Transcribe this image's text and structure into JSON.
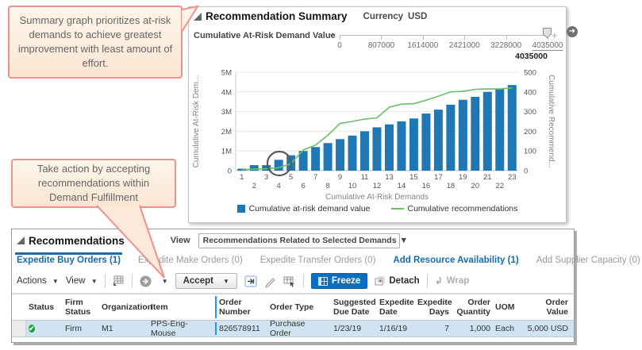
{
  "callouts": {
    "summary": "Summary graph prioritizes at-risk demands to achieve greatest improvement with least amount of effort.",
    "action": "Take action by accepting recommendations within Demand Fulfillment"
  },
  "summary_panel": {
    "title": "Recommendation Summary",
    "currency_label": "Currency",
    "currency_value": "USD",
    "slider": {
      "label": "Cumulative At-Risk Demand Value",
      "minus_label": "−",
      "plus_label": "+",
      "ticks": [
        "0",
        "807000",
        "1614000",
        "2421000",
        "3228000",
        "4035000"
      ],
      "current_value": "4035000"
    }
  },
  "chart_data": {
    "type": "bar",
    "title": "",
    "categories": [
      "1",
      "2",
      "3",
      "4",
      "5",
      "6",
      "7",
      "8",
      "9",
      "10",
      "11",
      "12",
      "13",
      "14",
      "15",
      "16",
      "17",
      "18",
      "19",
      "20",
      "21",
      "22",
      "23"
    ],
    "series": [
      {
        "name": "Cumulative at-risk demand value",
        "type": "bar",
        "axis": "left",
        "color": "#1f77b4",
        "values": [
          100000,
          280000,
          280000,
          550000,
          780000,
          1000000,
          1200000,
          1400000,
          1600000,
          1780000,
          2000000,
          2200000,
          2350000,
          2500000,
          2650000,
          2900000,
          3100000,
          3350000,
          3600000,
          3750000,
          4000000,
          4150000,
          4350000
        ]
      },
      {
        "name": "Cumulative recommendations",
        "type": "line",
        "axis": "right",
        "color": "#6abf69",
        "values": [
          5,
          8,
          10,
          15,
          35,
          105,
          130,
          180,
          240,
          250,
          262,
          268,
          322,
          338,
          340,
          358,
          378,
          400,
          403,
          413,
          415,
          415,
          420
        ]
      }
    ],
    "xlabel": "Cumulative At-Risk Demands",
    "ylabel_left": "Cumulative At-Risk Dem...",
    "ylabel_right": "Cumulative Recommend...",
    "ylim_left": [
      0,
      5000000
    ],
    "ylim_right": [
      0,
      500
    ],
    "yticks_left": [
      "5M",
      "4M",
      "3M",
      "2M",
      "1M",
      "0"
    ],
    "yticks_right": [
      "500",
      "400",
      "300",
      "200",
      "100",
      "0"
    ],
    "grid": true,
    "legend_position": "bottom",
    "annotation": "circle highlighting demands 4-5 where line crosses bars"
  },
  "recommendations_panel": {
    "title": "Recommendations",
    "view_label": "View",
    "view_value": "Recommendations Related to Selected Demands",
    "tabs": [
      {
        "label": "Expedite Buy Orders (1)",
        "state": "active"
      },
      {
        "label": "Expedite Make Orders (0)",
        "state": "inactive"
      },
      {
        "label": "Expedite Transfer Orders (0)",
        "state": "inactive"
      },
      {
        "label": "Add Resource Availability (1)",
        "state": "link"
      },
      {
        "label": "Add Supplier Capacity (0)",
        "state": "inactive"
      }
    ],
    "toolbar": {
      "actions_label": "Actions",
      "view_label": "View",
      "accept_label": "Accept",
      "freeze_label": "Freeze",
      "detach_label": "Detach",
      "wrap_label": "Wrap"
    },
    "table": {
      "columns": [
        "Status",
        "Firm Status",
        "Organization",
        "Item",
        "Order Number",
        "Order Type",
        "Suggested Due Date",
        "Expedite Date",
        "Expedite Days",
        "Order Quantity",
        "UOM",
        "Order Value"
      ],
      "rows": [
        {
          "status_icon": "check",
          "cells": [
            "Firm",
            "M1",
            "PPS-Eng-Mouse",
            "826578911",
            "Purchase Order",
            "1/23/19",
            "1/16/19",
            "7",
            "1,000",
            "Each",
            "5,000 USD"
          ]
        }
      ]
    }
  },
  "colors": {
    "bar_blue": "#1f77b4",
    "line_green": "#6abf69",
    "freeze_button_blue": "#0b6fc0",
    "active_tab_blue": "#166cab",
    "selected_row": "#cfe3f1",
    "callout_border": "#ef918d",
    "freeze_divider": "#1f9ede",
    "status_green": "#1e9e45"
  }
}
